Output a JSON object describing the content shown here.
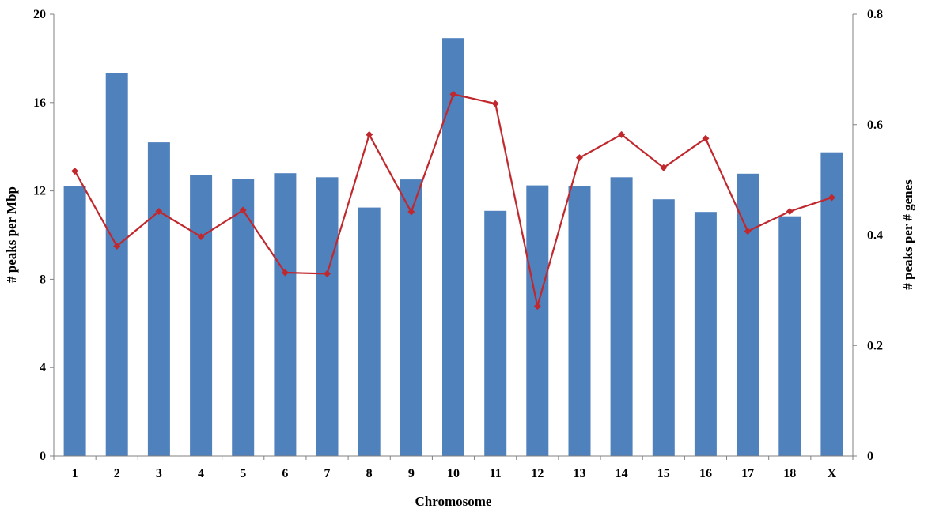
{
  "chart_data": {
    "type": "bar",
    "categories": [
      "1",
      "2",
      "3",
      "4",
      "5",
      "6",
      "7",
      "8",
      "9",
      "10",
      "11",
      "12",
      "13",
      "14",
      "15",
      "16",
      "17",
      "18",
      "X"
    ],
    "xlabel": "Chromosome",
    "ylabel": "# peaks per Mbp",
    "y2label": "# peaks per # genes",
    "ylim": [
      0,
      20
    ],
    "y2lim": [
      0,
      0.8
    ],
    "yticks": [
      "0",
      "4",
      "8",
      "12",
      "16",
      "20"
    ],
    "y2ticks": [
      "0",
      "0.2",
      "0.4",
      "0.6",
      "0.8"
    ],
    "bar_color": "#4F81BD",
    "line_color": "#C0282D",
    "series": [
      {
        "axis": "left",
        "kind": "bar",
        "values": [
          12.2,
          17.35,
          14.2,
          12.7,
          12.55,
          12.8,
          12.62,
          11.25,
          12.52,
          18.92,
          11.1,
          12.25,
          12.2,
          12.62,
          11.62,
          11.05,
          12.78,
          10.85,
          13.75
        ]
      },
      {
        "axis": "right",
        "kind": "line",
        "marker": "diamond",
        "values": [
          0.516,
          0.38,
          0.443,
          0.397,
          0.445,
          0.332,
          0.33,
          0.582,
          0.442,
          0.655,
          0.638,
          0.271,
          0.54,
          0.582,
          0.522,
          0.575,
          0.407,
          0.443,
          0.468
        ]
      }
    ],
    "grid": false,
    "legend": "none"
  }
}
